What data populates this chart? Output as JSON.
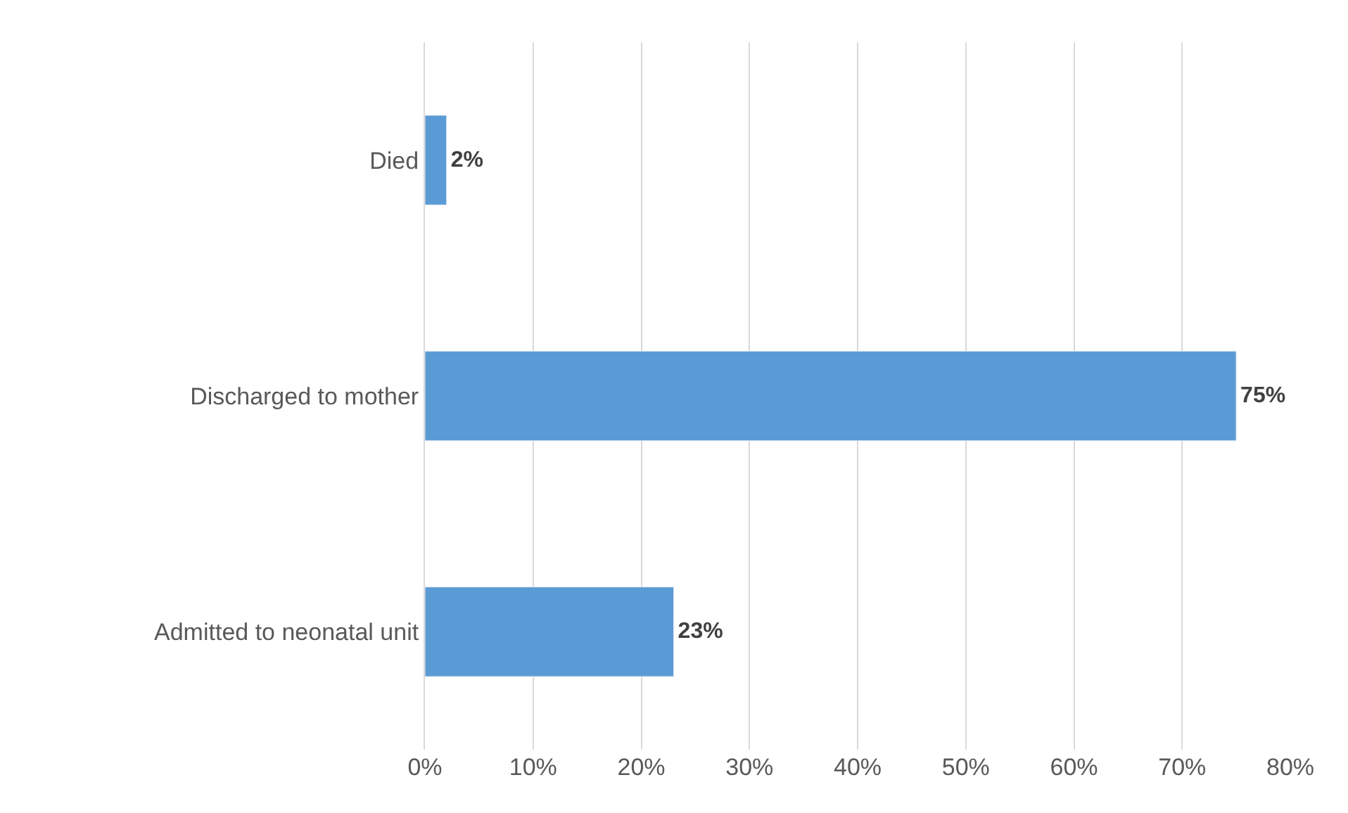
{
  "chart_data": {
    "type": "bar",
    "orientation": "horizontal",
    "categories": [
      "Died",
      "Discharged to mother",
      "Admitted to neonatal unit"
    ],
    "values": [
      2,
      75,
      23
    ],
    "value_labels": [
      "2%",
      "75%",
      "23%"
    ],
    "color": "#5b9bd5",
    "xlim": [
      0,
      80
    ],
    "xticks": [
      {
        "value": 0,
        "label": "0%"
      },
      {
        "value": 10,
        "label": "10%"
      },
      {
        "value": 20,
        "label": "20%"
      },
      {
        "value": 30,
        "label": "30%"
      },
      {
        "value": 40,
        "label": "40%"
      },
      {
        "value": 50,
        "label": "50%"
      },
      {
        "value": 60,
        "label": "60%"
      },
      {
        "value": 70,
        "label": "70%"
      },
      {
        "value": 80,
        "label": "80%"
      }
    ],
    "grid": "x"
  }
}
